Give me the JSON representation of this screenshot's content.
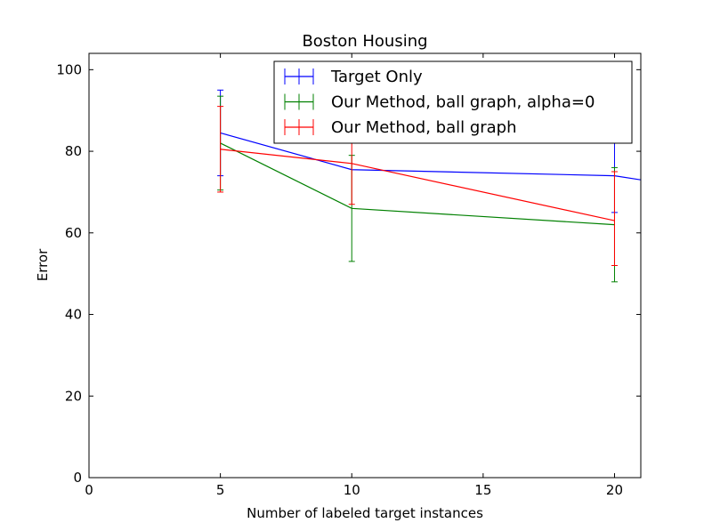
{
  "chart_data": {
    "type": "line",
    "title": "Boston Housing",
    "xlabel": "Number of labeled target instances",
    "ylabel": "Error",
    "xlim": [
      0,
      21
    ],
    "ylim": [
      0,
      104
    ],
    "xticks": [
      0,
      5,
      10,
      15,
      20
    ],
    "yticks": [
      0,
      20,
      40,
      60,
      80,
      100
    ],
    "grid": false,
    "legend_position": "top-right",
    "series": [
      {
        "name": "Target Only",
        "color": "#0000ff",
        "x": [
          5,
          10,
          20,
          21
        ],
        "y": [
          84.5,
          75.5,
          74.0,
          73.0
        ],
        "error_bars": [
          {
            "x": 5,
            "low": 74.0,
            "high": 95.0
          },
          {
            "x": 20,
            "low": 65.0,
            "high": 82.0
          }
        ]
      },
      {
        "name": "Our Method, ball graph, alpha=0",
        "color": "#008000",
        "x": [
          5,
          10,
          20
        ],
        "y": [
          82.0,
          66.0,
          62.0
        ],
        "error_bars": [
          {
            "x": 5,
            "low": 70.5,
            "high": 93.5
          },
          {
            "x": 10,
            "low": 53.0,
            "high": 79.0
          },
          {
            "x": 20,
            "low": 48.0,
            "high": 76.0
          }
        ]
      },
      {
        "name": "Our Method, ball graph",
        "color": "#ff0000",
        "x": [
          5,
          10,
          20
        ],
        "y": [
          80.5,
          77.0,
          63.0
        ],
        "error_bars": [
          {
            "x": 5,
            "low": 70.0,
            "high": 91.0
          },
          {
            "x": 10,
            "low": 67.0,
            "high": 87.0
          },
          {
            "x": 20,
            "low": 52.0,
            "high": 75.0
          }
        ]
      }
    ]
  }
}
